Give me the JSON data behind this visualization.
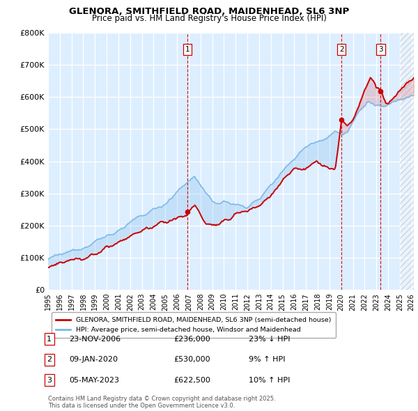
{
  "title_line1": "GLENORA, SMITHFIELD ROAD, MAIDENHEAD, SL6 3NP",
  "title_line2": "Price paid vs. HM Land Registry's House Price Index (HPI)",
  "ylim": [
    0,
    800000
  ],
  "yticks": [
    0,
    100000,
    200000,
    300000,
    400000,
    500000,
    600000,
    700000,
    800000
  ],
  "ytick_labels": [
    "£0",
    "£100K",
    "£200K",
    "£300K",
    "£400K",
    "£500K",
    "£600K",
    "£700K",
    "£800K"
  ],
  "hpi_color": "#7ab8e8",
  "price_color": "#cc0000",
  "vline_color": "#cc0000",
  "grid_color": "#c8d8e8",
  "bg_color": "#ddeeff",
  "legend_label_red": "GLENORA, SMITHFIELD ROAD, MAIDENHEAD, SL6 3NP (semi-detached house)",
  "legend_label_blue": "HPI: Average price, semi-detached house, Windsor and Maidenhead",
  "transactions": [
    {
      "label": "1",
      "x_year": 2006.9,
      "price": 236000
    },
    {
      "label": "2",
      "x_year": 2020.03,
      "price": 530000
    },
    {
      "label": "3",
      "x_year": 2023.37,
      "price": 622500
    }
  ],
  "table_rows": [
    {
      "num": "1",
      "date": "23-NOV-2006",
      "price": "£236,000",
      "note": "23% ↓ HPI"
    },
    {
      "num": "2",
      "date": "09-JAN-2020",
      "price": "£530,000",
      "note": "9% ↑ HPI"
    },
    {
      "num": "3",
      "date": "05-MAY-2023",
      "price": "£622,500",
      "note": "10% ↑ HPI"
    }
  ],
  "footer": "Contains HM Land Registry data © Crown copyright and database right 2025.\nThis data is licensed under the Open Government Licence v3.0.",
  "xlim_start": 1995,
  "xlim_end": 2026.2,
  "hatch_start": 2025.0
}
